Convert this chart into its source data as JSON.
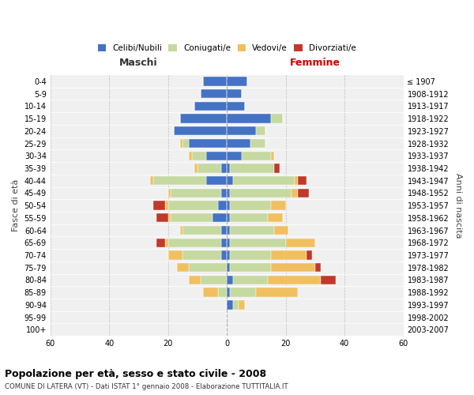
{
  "age_groups": [
    "0-4",
    "5-9",
    "10-14",
    "15-19",
    "20-24",
    "25-29",
    "30-34",
    "35-39",
    "40-44",
    "45-49",
    "50-54",
    "55-59",
    "60-64",
    "65-69",
    "70-74",
    "75-79",
    "80-84",
    "85-89",
    "90-94",
    "95-99",
    "100+"
  ],
  "birth_years": [
    "2003-2007",
    "1998-2002",
    "1993-1997",
    "1988-1992",
    "1983-1987",
    "1978-1982",
    "1973-1977",
    "1968-1972",
    "1963-1967",
    "1958-1962",
    "1953-1957",
    "1948-1952",
    "1943-1947",
    "1938-1942",
    "1933-1937",
    "1928-1932",
    "1923-1927",
    "1918-1922",
    "1913-1917",
    "1908-1912",
    "≤ 1907"
  ],
  "male_celibi": [
    8,
    9,
    11,
    16,
    18,
    13,
    7,
    2,
    7,
    2,
    3,
    5,
    2,
    2,
    2,
    0,
    0,
    0,
    0,
    0,
    0
  ],
  "male_coniugati": [
    0,
    0,
    0,
    0,
    0,
    2,
    5,
    8,
    18,
    17,
    17,
    14,
    13,
    18,
    13,
    13,
    9,
    3,
    0,
    0,
    0
  ],
  "male_vedovi": [
    0,
    0,
    0,
    0,
    0,
    1,
    1,
    1,
    1,
    1,
    1,
    1,
    1,
    1,
    5,
    4,
    4,
    5,
    0,
    0,
    0
  ],
  "male_divorziati": [
    0,
    0,
    0,
    0,
    0,
    0,
    0,
    0,
    0,
    0,
    4,
    4,
    0,
    3,
    0,
    0,
    0,
    0,
    0,
    0,
    0
  ],
  "female_celibi": [
    7,
    5,
    6,
    15,
    10,
    8,
    5,
    1,
    2,
    1,
    1,
    1,
    1,
    1,
    1,
    1,
    2,
    1,
    2,
    0,
    0
  ],
  "female_coniugati": [
    0,
    0,
    0,
    4,
    3,
    5,
    10,
    15,
    21,
    21,
    14,
    13,
    15,
    19,
    14,
    14,
    12,
    9,
    2,
    0,
    0
  ],
  "female_vedovi": [
    0,
    0,
    0,
    0,
    0,
    0,
    1,
    0,
    1,
    2,
    5,
    5,
    5,
    10,
    12,
    15,
    18,
    14,
    2,
    0,
    0
  ],
  "female_divorziati": [
    0,
    0,
    0,
    0,
    0,
    0,
    0,
    2,
    3,
    4,
    0,
    0,
    0,
    0,
    2,
    2,
    5,
    0,
    0,
    0,
    0
  ],
  "color_celibi": "#4472c4",
  "color_coniugati": "#c5d9a0",
  "color_vedovi": "#f0c060",
  "color_divorziati": "#c0392b",
  "title1": "Popolazione per età, sesso e stato civile - 2008",
  "title2": "COMUNE DI LATERA (VT) - Dati ISTAT 1° gennaio 2008 - Elaborazione TUTTITALIA.IT",
  "xlabel_left": "Maschi",
  "xlabel_right": "Femmine",
  "ylabel_left": "Fasce di età",
  "ylabel_right": "Anni di nascita",
  "xlim": 60,
  "legend_labels": [
    "Celibi/Nubili",
    "Coniugati/e",
    "Vedovi/e",
    "Divorziati/e"
  ],
  "bg_color": "#f0f0f0"
}
